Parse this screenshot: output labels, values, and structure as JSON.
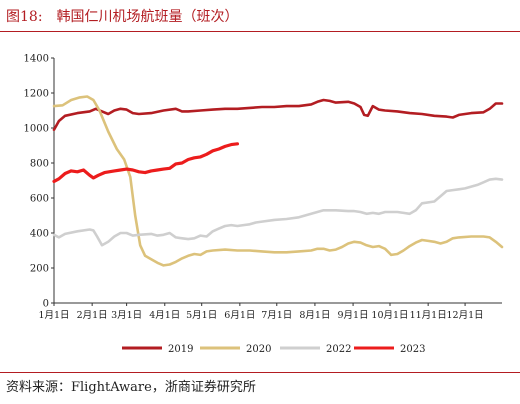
{
  "header": {
    "figure_label": "图18:",
    "title": "韩国仁川机场航班量（班次）"
  },
  "source": "资料来源：FlightAware，浙商证券研究所",
  "chart_data": {
    "type": "line",
    "title": "韩国仁川机场航班量（班次）",
    "xlabel": "",
    "ylabel": "",
    "ylim": [
      0,
      1400
    ],
    "yticks": [
      0,
      200,
      400,
      600,
      800,
      1000,
      1200,
      1400
    ],
    "xticks": [
      "1月1日",
      "2月1日",
      "3月1日",
      "4月1日",
      "5月1日",
      "6月1日",
      "7月1日",
      "8月1日",
      "9月1日",
      "10月1日",
      "11月1日",
      "12月1日"
    ],
    "xtick_days": [
      1,
      32,
      60,
      91,
      121,
      152,
      182,
      213,
      244,
      274,
      305,
      335
    ],
    "xlim": [
      1,
      365
    ],
    "grid": false,
    "legend_position": "bottom",
    "series": [
      {
        "name": "2019",
        "color": "#b31d22",
        "points": [
          [
            1,
            990
          ],
          [
            5,
            1040
          ],
          [
            10,
            1070
          ],
          [
            20,
            1085
          ],
          [
            30,
            1095
          ],
          [
            35,
            1110
          ],
          [
            40,
            1095
          ],
          [
            45,
            1080
          ],
          [
            50,
            1100
          ],
          [
            55,
            1110
          ],
          [
            60,
            1105
          ],
          [
            65,
            1085
          ],
          [
            70,
            1080
          ],
          [
            80,
            1085
          ],
          [
            90,
            1100
          ],
          [
            100,
            1110
          ],
          [
            105,
            1095
          ],
          [
            110,
            1095
          ],
          [
            120,
            1100
          ],
          [
            130,
            1105
          ],
          [
            140,
            1110
          ],
          [
            150,
            1110
          ],
          [
            160,
            1115
          ],
          [
            170,
            1120
          ],
          [
            180,
            1120
          ],
          [
            190,
            1125
          ],
          [
            200,
            1125
          ],
          [
            210,
            1135
          ],
          [
            215,
            1150
          ],
          [
            220,
            1160
          ],
          [
            225,
            1155
          ],
          [
            230,
            1145
          ],
          [
            240,
            1150
          ],
          [
            245,
            1140
          ],
          [
            250,
            1120
          ],
          [
            253,
            1075
          ],
          [
            256,
            1070
          ],
          [
            260,
            1125
          ],
          [
            265,
            1105
          ],
          [
            270,
            1100
          ],
          [
            280,
            1095
          ],
          [
            290,
            1085
          ],
          [
            300,
            1080
          ],
          [
            310,
            1070
          ],
          [
            320,
            1065
          ],
          [
            325,
            1060
          ],
          [
            330,
            1075
          ],
          [
            340,
            1085
          ],
          [
            350,
            1090
          ],
          [
            355,
            1110
          ],
          [
            360,
            1140
          ],
          [
            365,
            1140
          ]
        ]
      },
      {
        "name": "2020",
        "color": "#dcc27b",
        "points": [
          [
            1,
            1125
          ],
          [
            8,
            1130
          ],
          [
            15,
            1160
          ],
          [
            22,
            1175
          ],
          [
            28,
            1180
          ],
          [
            33,
            1160
          ],
          [
            38,
            1100
          ],
          [
            45,
            980
          ],
          [
            52,
            880
          ],
          [
            58,
            820
          ],
          [
            63,
            720
          ],
          [
            67,
            500
          ],
          [
            71,
            330
          ],
          [
            75,
            270
          ],
          [
            80,
            250
          ],
          [
            85,
            230
          ],
          [
            90,
            215
          ],
          [
            95,
            220
          ],
          [
            100,
            235
          ],
          [
            105,
            255
          ],
          [
            110,
            270
          ],
          [
            115,
            280
          ],
          [
            120,
            275
          ],
          [
            125,
            295
          ],
          [
            130,
            300
          ],
          [
            140,
            305
          ],
          [
            150,
            300
          ],
          [
            160,
            300
          ],
          [
            170,
            295
          ],
          [
            180,
            290
          ],
          [
            190,
            290
          ],
          [
            200,
            295
          ],
          [
            210,
            300
          ],
          [
            215,
            310
          ],
          [
            220,
            310
          ],
          [
            225,
            300
          ],
          [
            230,
            305
          ],
          [
            235,
            320
          ],
          [
            240,
            340
          ],
          [
            245,
            350
          ],
          [
            250,
            345
          ],
          [
            255,
            330
          ],
          [
            260,
            320
          ],
          [
            265,
            325
          ],
          [
            270,
            310
          ],
          [
            275,
            275
          ],
          [
            280,
            280
          ],
          [
            285,
            300
          ],
          [
            290,
            325
          ],
          [
            295,
            345
          ],
          [
            300,
            360
          ],
          [
            305,
            355
          ],
          [
            310,
            350
          ],
          [
            315,
            340
          ],
          [
            320,
            350
          ],
          [
            325,
            370
          ],
          [
            330,
            375
          ],
          [
            340,
            380
          ],
          [
            350,
            380
          ],
          [
            355,
            375
          ],
          [
            360,
            350
          ],
          [
            365,
            320
          ]
        ]
      },
      {
        "name": "2022",
        "color": "#cfcfcf",
        "points": [
          [
            1,
            390
          ],
          [
            5,
            375
          ],
          [
            10,
            395
          ],
          [
            20,
            410
          ],
          [
            30,
            420
          ],
          [
            33,
            415
          ],
          [
            36,
            380
          ],
          [
            40,
            330
          ],
          [
            45,
            350
          ],
          [
            50,
            380
          ],
          [
            55,
            400
          ],
          [
            60,
            400
          ],
          [
            65,
            385
          ],
          [
            70,
            390
          ],
          [
            80,
            395
          ],
          [
            85,
            385
          ],
          [
            90,
            390
          ],
          [
            95,
            400
          ],
          [
            100,
            375
          ],
          [
            105,
            370
          ],
          [
            110,
            365
          ],
          [
            115,
            370
          ],
          [
            120,
            385
          ],
          [
            125,
            380
          ],
          [
            130,
            410
          ],
          [
            135,
            425
          ],
          [
            140,
            440
          ],
          [
            145,
            445
          ],
          [
            150,
            440
          ],
          [
            155,
            445
          ],
          [
            160,
            450
          ],
          [
            165,
            460
          ],
          [
            170,
            465
          ],
          [
            180,
            475
          ],
          [
            190,
            480
          ],
          [
            200,
            490
          ],
          [
            210,
            510
          ],
          [
            220,
            530
          ],
          [
            230,
            530
          ],
          [
            240,
            525
          ],
          [
            245,
            525
          ],
          [
            250,
            520
          ],
          [
            255,
            510
          ],
          [
            260,
            515
          ],
          [
            265,
            510
          ],
          [
            270,
            520
          ],
          [
            280,
            520
          ],
          [
            285,
            515
          ],
          [
            290,
            510
          ],
          [
            295,
            530
          ],
          [
            300,
            570
          ],
          [
            310,
            580
          ],
          [
            315,
            610
          ],
          [
            320,
            640
          ],
          [
            325,
            645
          ],
          [
            330,
            650
          ],
          [
            335,
            655
          ],
          [
            340,
            665
          ],
          [
            345,
            675
          ],
          [
            350,
            690
          ],
          [
            355,
            705
          ],
          [
            360,
            710
          ],
          [
            365,
            705
          ]
        ]
      },
      {
        "name": "2023",
        "color": "#ec1c1c",
        "points": [
          [
            1,
            695
          ],
          [
            5,
            710
          ],
          [
            10,
            740
          ],
          [
            15,
            755
          ],
          [
            20,
            750
          ],
          [
            25,
            760
          ],
          [
            30,
            730
          ],
          [
            33,
            715
          ],
          [
            37,
            730
          ],
          [
            42,
            745
          ],
          [
            50,
            755
          ],
          [
            55,
            760
          ],
          [
            60,
            765
          ],
          [
            65,
            760
          ],
          [
            70,
            750
          ],
          [
            75,
            745
          ],
          [
            80,
            755
          ],
          [
            85,
            760
          ],
          [
            90,
            765
          ],
          [
            95,
            770
          ],
          [
            100,
            795
          ],
          [
            105,
            800
          ],
          [
            110,
            820
          ],
          [
            115,
            830
          ],
          [
            120,
            835
          ],
          [
            125,
            850
          ],
          [
            130,
            870
          ],
          [
            135,
            880
          ],
          [
            140,
            895
          ],
          [
            145,
            905
          ],
          [
            150,
            910
          ]
        ]
      }
    ]
  }
}
